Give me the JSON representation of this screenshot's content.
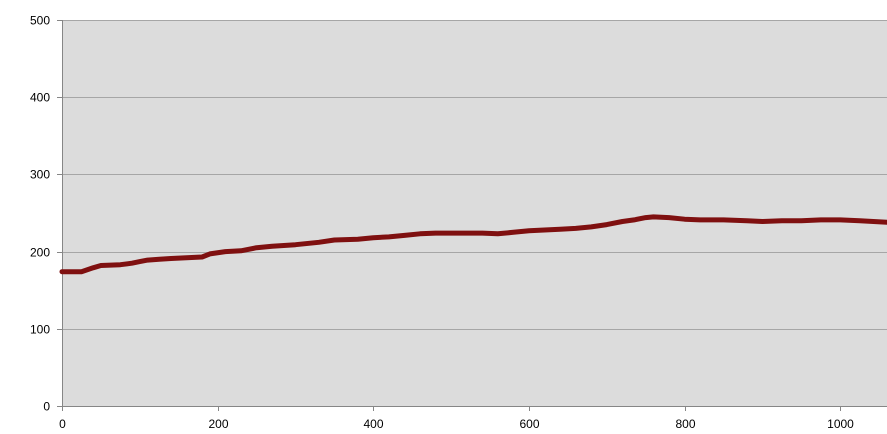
{
  "chart_data": {
    "type": "line",
    "title": "",
    "xlabel": "",
    "ylabel": "",
    "xlim": [
      0,
      1060
    ],
    "ylim": [
      0,
      500
    ],
    "x_ticks": [
      0,
      200,
      400,
      600,
      800,
      1000
    ],
    "y_ticks": [
      0,
      100,
      200,
      300,
      400,
      500
    ],
    "grid": "horizontal",
    "legend": "none",
    "colors": {
      "plot_background": "#dcdcdc",
      "gridline": "#a6a6a6",
      "axis": "#868686",
      "line": "#7f1010"
    },
    "series": [
      {
        "x": [
          0,
          25,
          40,
          50,
          75,
          90,
          100,
          110,
          125,
          140,
          160,
          180,
          190,
          210,
          230,
          250,
          270,
          300,
          330,
          350,
          380,
          400,
          420,
          440,
          460,
          480,
          500,
          520,
          540,
          560,
          580,
          600,
          620,
          640,
          660,
          680,
          700,
          720,
          735,
          750,
          760,
          780,
          800,
          820,
          850,
          880,
          900,
          925,
          950,
          975,
          1000,
          1025,
          1060
        ],
        "values": [
          174,
          174,
          179,
          182,
          183,
          185,
          187,
          189,
          190,
          191,
          192,
          193,
          197,
          200,
          201,
          205,
          207,
          209,
          212,
          215,
          216,
          218,
          219,
          221,
          223,
          224,
          224,
          224,
          224,
          223,
          225,
          227,
          228,
          229,
          230,
          232,
          235,
          239,
          241,
          244,
          245,
          244,
          242,
          241,
          241,
          240,
          239,
          240,
          240,
          241,
          241,
          240,
          238
        ]
      }
    ]
  }
}
